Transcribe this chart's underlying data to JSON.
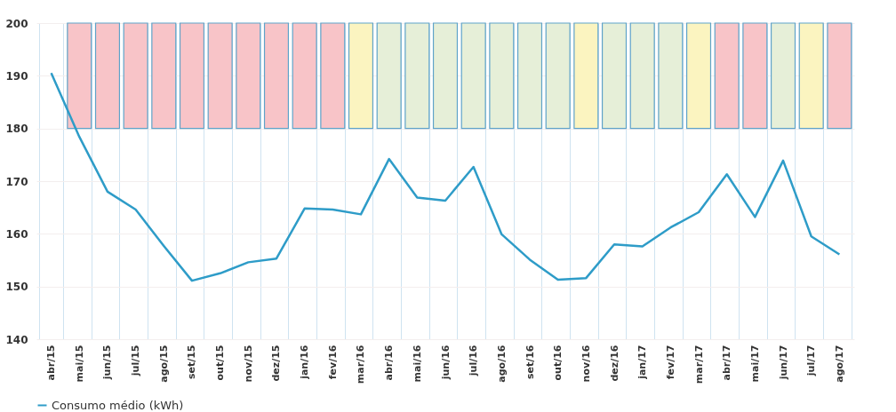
{
  "chart_data": {
    "type": "line",
    "categories": [
      "abr/15",
      "mai/15",
      "jun/15",
      "jul/15",
      "ago/15",
      "set/15",
      "out/15",
      "nov/15",
      "dez/15",
      "jan/16",
      "fev/16",
      "mar/16",
      "abr/16",
      "mai/16",
      "jun/16",
      "jul/16",
      "ago/16",
      "set/16",
      "out/16",
      "nov/16",
      "dez/16",
      "jan/17",
      "fev/17",
      "mar/17",
      "abr/17",
      "mai/17",
      "jun/17",
      "jul/17",
      "ago/17"
    ],
    "series": [
      {
        "type": "bar",
        "base": [
          null,
          180,
          180,
          180,
          180,
          180,
          180,
          180,
          180,
          180,
          180,
          180,
          180,
          180,
          180,
          180,
          180,
          180,
          180,
          180,
          180,
          180,
          180,
          180,
          180,
          180,
          180,
          180,
          180
        ],
        "values": [
          null,
          20,
          20,
          20,
          20,
          20,
          20,
          20,
          20,
          20,
          20,
          20,
          20,
          20,
          20,
          20,
          20,
          20,
          20,
          20,
          20,
          20,
          20,
          20,
          20,
          20,
          20,
          20,
          20
        ],
        "colors": [
          null,
          "#f8c4c8",
          "#f8c4c8",
          "#f8c4c8",
          "#f8c4c8",
          "#f8c4c8",
          "#f8c4c8",
          "#f8c4c8",
          "#f8c4c8",
          "#f8c4c8",
          "#f8c4c8",
          "#fbf4c0",
          "#e6efd8",
          "#e6efd8",
          "#e6efd8",
          "#e6efd8",
          "#e6efd8",
          "#e6efd8",
          "#e6efd8",
          "#fbf4c0",
          "#e6efd8",
          "#e6efd8",
          "#e6efd8",
          "#fbf4c0",
          "#f8c4c8",
          "#f8c4c8",
          "#e6efd8",
          "#fbf4c0",
          "#f8c4c8"
        ]
      },
      {
        "name": "Consumo médio (kWh)",
        "color": "#2e9cc8",
        "values": [
          190.5,
          178.4,
          168.0,
          164.6,
          157.7,
          151.1,
          152.5,
          154.6,
          155.3,
          164.8,
          164.6,
          163.7,
          174.2,
          166.9,
          166.3,
          172.7,
          159.9,
          155.1,
          151.3,
          151.6,
          158.0,
          157.6,
          161.2,
          164.1,
          171.3,
          163.2,
          173.9,
          159.5,
          156.1
        ]
      }
    ],
    "ylim": [
      140,
      200
    ],
    "yticks": [
      140,
      150,
      160,
      170,
      180,
      190,
      200
    ],
    "grid": true,
    "legend": "bottom",
    "marker": "none",
    "line_style": "solid"
  }
}
